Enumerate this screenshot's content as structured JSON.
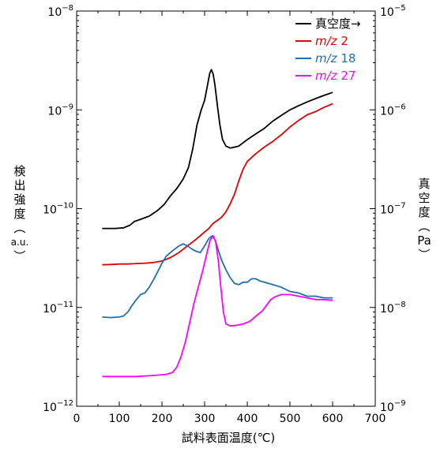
{
  "chart_data": {
    "type": "line",
    "xlabel": "試料表面温度(℃)",
    "ylabel_left": [
      "検",
      "出",
      "強",
      "度",
      "︵",
      "a.u.",
      "︶"
    ],
    "ylabel_right": [
      "真",
      "空",
      "度",
      "︵",
      "Pa",
      "︶"
    ],
    "xlim": [
      0,
      700
    ],
    "ylim_left": [
      1e-12,
      1e-08
    ],
    "ylim_right": [
      1e-09,
      1e-05
    ],
    "yscale": "log",
    "x_ticks": [
      {
        "value": 0,
        "label": "0"
      },
      {
        "value": 100,
        "label": "100"
      },
      {
        "value": 200,
        "label": "200"
      },
      {
        "value": 300,
        "label": "300"
      },
      {
        "value": 400,
        "label": "400"
      },
      {
        "value": 500,
        "label": "500"
      },
      {
        "value": 600,
        "label": "600"
      },
      {
        "value": 700,
        "label": "700"
      }
    ],
    "y_ticks_left": [
      {
        "value": 1e-12,
        "base": "10",
        "exp": "−12"
      },
      {
        "value": 1e-11,
        "base": "10",
        "exp": "−11"
      },
      {
        "value": 1e-10,
        "base": "10",
        "exp": "−10"
      },
      {
        "value": 1e-09,
        "base": "10",
        "exp": "−9"
      },
      {
        "value": 1e-08,
        "base": "10",
        "exp": "−8"
      }
    ],
    "y_ticks_right": [
      {
        "value": 1e-09,
        "base": "10",
        "exp": "−9"
      },
      {
        "value": 1e-08,
        "base": "10",
        "exp": "−8"
      },
      {
        "value": 1e-07,
        "base": "10",
        "exp": "−7"
      },
      {
        "value": 1e-06,
        "base": "10",
        "exp": "−6"
      },
      {
        "value": 1e-05,
        "base": "10",
        "exp": "−5"
      }
    ],
    "legend_position": "top-right",
    "series": [
      {
        "name": "真空度→",
        "color": "#000000",
        "axis": "right",
        "points": [
          [
            60,
            6.3e-08
          ],
          [
            90,
            6.3e-08
          ],
          [
            110,
            6.4e-08
          ],
          [
            125,
            6.8e-08
          ],
          [
            135,
            7.4e-08
          ],
          [
            150,
            7.8e-08
          ],
          [
            170,
            8.4e-08
          ],
          [
            190,
            9.6e-08
          ],
          [
            205,
            1.1e-07
          ],
          [
            220,
            1.35e-07
          ],
          [
            235,
            1.6e-07
          ],
          [
            250,
            2e-07
          ],
          [
            262,
            2.6e-07
          ],
          [
            272,
            4e-07
          ],
          [
            282,
            7e-07
          ],
          [
            292,
            1e-06
          ],
          [
            300,
            1.25e-06
          ],
          [
            306,
            1.7e-06
          ],
          [
            312,
            2.35e-06
          ],
          [
            316,
            2.55e-06
          ],
          [
            320,
            2.3e-06
          ],
          [
            324,
            1.8e-06
          ],
          [
            330,
            1.1e-06
          ],
          [
            336,
            7e-07
          ],
          [
            342,
            5e-07
          ],
          [
            350,
            4.3e-07
          ],
          [
            360,
            4.1e-07
          ],
          [
            380,
            4.3e-07
          ],
          [
            400,
            5e-07
          ],
          [
            420,
            5.7e-07
          ],
          [
            440,
            6.5e-07
          ],
          [
            460,
            7.7e-07
          ],
          [
            480,
            8.8e-07
          ],
          [
            500,
            1e-06
          ],
          [
            520,
            1.1e-06
          ],
          [
            540,
            1.2e-06
          ],
          [
            560,
            1.3e-06
          ],
          [
            580,
            1.4e-06
          ],
          [
            600,
            1.5e-06
          ]
        ]
      },
      {
        "name": "m/z 2",
        "color": "#e00000",
        "axis": "left",
        "points": [
          [
            60,
            2.7e-11
          ],
          [
            80,
            2.72e-11
          ],
          [
            100,
            2.75e-11
          ],
          [
            120,
            2.75e-11
          ],
          [
            140,
            2.78e-11
          ],
          [
            160,
            2.8e-11
          ],
          [
            180,
            2.85e-11
          ],
          [
            200,
            2.95e-11
          ],
          [
            220,
            3.2e-11
          ],
          [
            240,
            3.6e-11
          ],
          [
            260,
            4.2e-11
          ],
          [
            280,
            4.9e-11
          ],
          [
            300,
            5.8e-11
          ],
          [
            310,
            6.3e-11
          ],
          [
            320,
            7.1e-11
          ],
          [
            330,
            7.6e-11
          ],
          [
            340,
            8.2e-11
          ],
          [
            350,
            9.3e-11
          ],
          [
            360,
            1.12e-10
          ],
          [
            370,
            1.4e-10
          ],
          [
            380,
            1.9e-10
          ],
          [
            390,
            2.5e-10
          ],
          [
            400,
            3e-10
          ],
          [
            420,
            3.6e-10
          ],
          [
            440,
            4.2e-10
          ],
          [
            460,
            4.8e-10
          ],
          [
            480,
            5.6e-10
          ],
          [
            500,
            6.7e-10
          ],
          [
            520,
            7.8e-10
          ],
          [
            540,
            8.9e-10
          ],
          [
            560,
            9.6e-10
          ],
          [
            580,
            1.06e-09
          ],
          [
            600,
            1.15e-09
          ]
        ]
      },
      {
        "name": "m/z 18",
        "color": "#1f6fae",
        "axis": "left",
        "points": [
          [
            60,
            8e-12
          ],
          [
            80,
            7.9e-12
          ],
          [
            100,
            8e-12
          ],
          [
            110,
            8.2e-12
          ],
          [
            120,
            9e-12
          ],
          [
            130,
            1.05e-11
          ],
          [
            140,
            1.2e-11
          ],
          [
            150,
            1.35e-11
          ],
          [
            160,
            1.4e-11
          ],
          [
            170,
            1.6e-11
          ],
          [
            180,
            1.9e-11
          ],
          [
            190,
            2.3e-11
          ],
          [
            200,
            2.8e-11
          ],
          [
            210,
            3.3e-11
          ],
          [
            220,
            3.6e-11
          ],
          [
            230,
            3.9e-11
          ],
          [
            240,
            4.2e-11
          ],
          [
            250,
            4.4e-11
          ],
          [
            260,
            4.2e-11
          ],
          [
            270,
            3.9e-11
          ],
          [
            280,
            3.7e-11
          ],
          [
            290,
            3.6e-11
          ],
          [
            300,
            4.2e-11
          ],
          [
            310,
            5e-11
          ],
          [
            318,
            5.3e-11
          ],
          [
            325,
            4.8e-11
          ],
          [
            332,
            3.8e-11
          ],
          [
            340,
            3e-11
          ],
          [
            350,
            2.4e-11
          ],
          [
            360,
            2e-11
          ],
          [
            370,
            1.75e-11
          ],
          [
            380,
            1.7e-11
          ],
          [
            390,
            1.8e-11
          ],
          [
            400,
            1.8e-11
          ],
          [
            410,
            1.95e-11
          ],
          [
            420,
            1.95e-11
          ],
          [
            430,
            1.85e-11
          ],
          [
            440,
            1.8e-11
          ],
          [
            460,
            1.7e-11
          ],
          [
            480,
            1.6e-11
          ],
          [
            500,
            1.45e-11
          ],
          [
            520,
            1.4e-11
          ],
          [
            540,
            1.3e-11
          ],
          [
            560,
            1.3e-11
          ],
          [
            580,
            1.25e-11
          ],
          [
            600,
            1.25e-11
          ]
        ]
      },
      {
        "name": "m/z 27",
        "color": "#ff00ff",
        "axis": "left",
        "points": [
          [
            60,
            2e-12
          ],
          [
            100,
            2e-12
          ],
          [
            140,
            2e-12
          ],
          [
            180,
            2.05e-12
          ],
          [
            210,
            2.1e-12
          ],
          [
            225,
            2.2e-12
          ],
          [
            235,
            2.5e-12
          ],
          [
            245,
            3.2e-12
          ],
          [
            255,
            4.5e-12
          ],
          [
            265,
            7e-12
          ],
          [
            275,
            1.1e-11
          ],
          [
            285,
            1.6e-11
          ],
          [
            295,
            2.3e-11
          ],
          [
            305,
            3.5e-11
          ],
          [
            313,
            4.8e-11
          ],
          [
            320,
            5.3e-11
          ],
          [
            326,
            4.6e-11
          ],
          [
            332,
            3e-11
          ],
          [
            338,
            1.6e-11
          ],
          [
            344,
            9e-12
          ],
          [
            350,
            6.8e-12
          ],
          [
            360,
            6.5e-12
          ],
          [
            375,
            6.6e-12
          ],
          [
            390,
            6.8e-12
          ],
          [
            405,
            7.2e-12
          ],
          [
            415,
            7.8e-12
          ],
          [
            425,
            8.5e-12
          ],
          [
            435,
            9.2e-12
          ],
          [
            445,
            1.05e-11
          ],
          [
            455,
            1.2e-11
          ],
          [
            465,
            1.28e-11
          ],
          [
            480,
            1.35e-11
          ],
          [
            500,
            1.35e-11
          ],
          [
            520,
            1.3e-11
          ],
          [
            540,
            1.25e-11
          ],
          [
            560,
            1.2e-11
          ],
          [
            580,
            1.2e-11
          ],
          [
            600,
            1.18e-11
          ]
        ]
      }
    ],
    "legend": [
      {
        "prefix": "",
        "text": "真空度→",
        "color": "#000000"
      },
      {
        "prefix": "m/z",
        "text": "2",
        "color": "#e00000"
      },
      {
        "prefix": "m/z",
        "text": "18",
        "color": "#1f6fae"
      },
      {
        "prefix": "m/z",
        "text": "27",
        "color": "#ff00ff"
      }
    ]
  }
}
